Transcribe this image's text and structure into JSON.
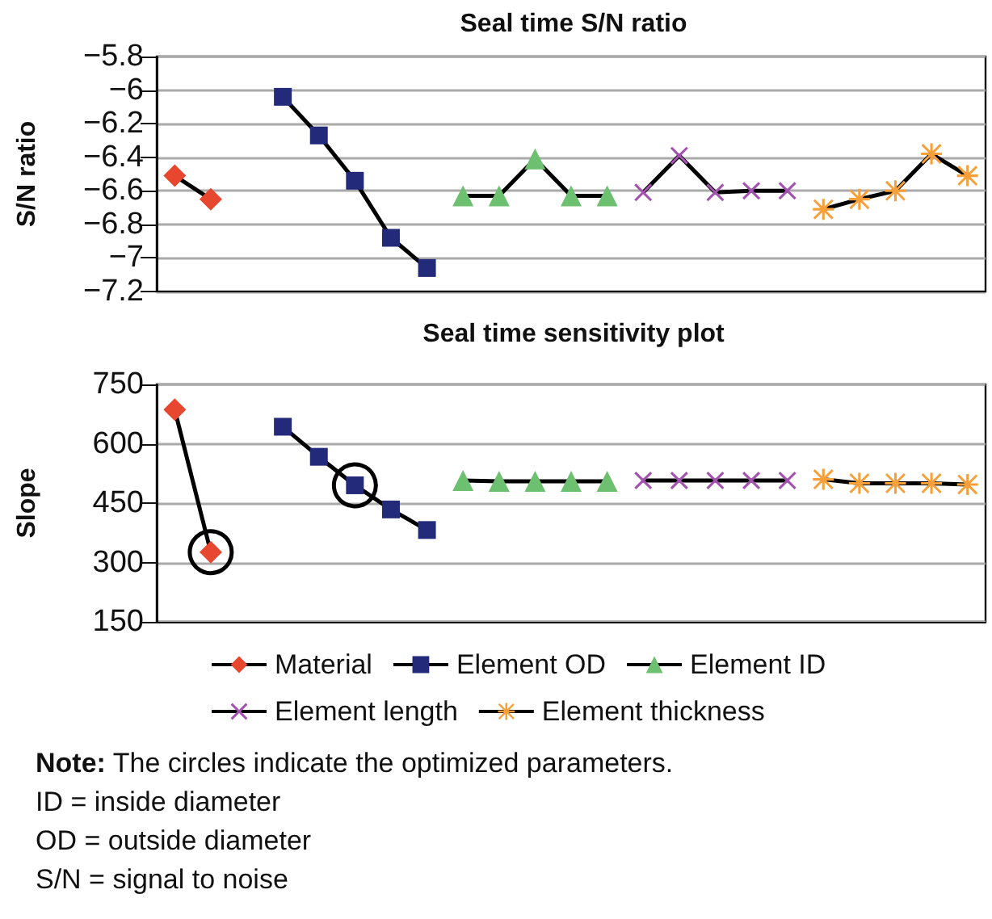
{
  "chart_data": [
    {
      "type": "line",
      "title": "Seal time S/N ratio",
      "ylabel": "S/N ratio",
      "categories": [
        null,
        null,
        null,
        null,
        null,
        null,
        null,
        null,
        null,
        null,
        null,
        null,
        null,
        null,
        null,
        null,
        null,
        null,
        null,
        null,
        null,
        null,
        null
      ],
      "series": [
        {
          "color": "#e8472f",
          "marker": "diamond",
          "values": [
            -6.51,
            -6.65,
            null,
            null,
            null,
            null,
            null,
            null,
            null,
            null,
            null,
            null,
            null,
            null,
            null,
            null,
            null,
            null,
            null,
            null,
            null,
            null,
            null
          ]
        },
        {
          "color": "#232a7a",
          "marker": "square",
          "values": [
            null,
            null,
            null,
            -6.04,
            -6.27,
            -6.54,
            -6.88,
            -7.06,
            null,
            null,
            null,
            null,
            null,
            null,
            null,
            null,
            null,
            null,
            null,
            null,
            null,
            null,
            null
          ]
        },
        {
          "color": "#6cc070",
          "marker": "triangle",
          "values": [
            null,
            null,
            null,
            null,
            null,
            null,
            null,
            null,
            -6.63,
            -6.63,
            -6.41,
            -6.63,
            -6.63,
            null,
            null,
            null,
            null,
            null,
            null,
            null,
            null,
            null,
            null
          ]
        },
        {
          "color": "#a452b0",
          "marker": "cross",
          "values": [
            null,
            null,
            null,
            null,
            null,
            null,
            null,
            null,
            null,
            null,
            null,
            null,
            null,
            -6.61,
            -6.39,
            -6.61,
            -6.6,
            -6.6,
            null,
            null,
            null,
            null,
            null
          ]
        },
        {
          "color": "#f7a03a",
          "marker": "star",
          "values": [
            null,
            null,
            null,
            null,
            null,
            null,
            null,
            null,
            null,
            null,
            null,
            null,
            null,
            null,
            null,
            null,
            null,
            null,
            -6.71,
            -6.65,
            -6.6,
            -6.38,
            -6.51
          ]
        }
      ],
      "ylim": [
        -7.2,
        -5.8
      ],
      "yticks": [
        {
          "value": -7.2,
          "label": "−7.2"
        },
        {
          "value": -7,
          "label": "−7"
        },
        {
          "value": -6.8,
          "label": "−6.8"
        },
        {
          "value": -6.6,
          "label": "−6.6"
        },
        {
          "value": -6.4,
          "label": "−6.4"
        },
        {
          "value": -6.2,
          "label": "−6.2"
        },
        {
          "value": -6,
          "label": "−6"
        },
        {
          "value": -5.8,
          "label": "−5.8"
        }
      ],
      "grid": "y",
      "legend": false,
      "line_style": "solid"
    },
    {
      "type": "line",
      "title": "Seal time sensitivity plot",
      "ylabel": "Slope",
      "categories": [
        null,
        null,
        null,
        null,
        null,
        null,
        null,
        null,
        null,
        null,
        null,
        null,
        null,
        null,
        null,
        null,
        null,
        null,
        null,
        null,
        null,
        null,
        null
      ],
      "series": [
        {
          "name": "Material",
          "color": "#e8472f",
          "marker": "diamond",
          "values": [
            686,
            326,
            null,
            null,
            null,
            null,
            null,
            null,
            null,
            null,
            null,
            null,
            null,
            null,
            null,
            null,
            null,
            null,
            null,
            null,
            null,
            null,
            null
          ]
        },
        {
          "name": "Element OD",
          "color": "#232a7a",
          "marker": "square",
          "values": [
            null,
            null,
            null,
            643,
            567,
            495,
            434,
            382,
            null,
            null,
            null,
            null,
            null,
            null,
            null,
            null,
            null,
            null,
            null,
            null,
            null,
            null,
            null
          ]
        },
        {
          "name": "Element ID",
          "color": "#6cc070",
          "marker": "triangle",
          "values": [
            null,
            null,
            null,
            null,
            null,
            null,
            null,
            null,
            507,
            505,
            505,
            505,
            505,
            null,
            null,
            null,
            null,
            null,
            null,
            null,
            null,
            null,
            null
          ]
        },
        {
          "name": "Element length",
          "color": "#a452b0",
          "marker": "cross",
          "values": [
            null,
            null,
            null,
            null,
            null,
            null,
            null,
            null,
            null,
            null,
            null,
            null,
            null,
            507,
            507,
            507,
            507,
            507,
            null,
            null,
            null,
            null,
            null
          ]
        },
        {
          "name": "Element thickness",
          "color": "#f7a03a",
          "marker": "star",
          "values": [
            null,
            null,
            null,
            null,
            null,
            null,
            null,
            null,
            null,
            null,
            null,
            null,
            null,
            null,
            null,
            null,
            null,
            null,
            510,
            500,
            500,
            500,
            497
          ]
        },
        {
          "type": "scatter",
          "color": "#000000",
          "marker": "circle",
          "values": [
            null,
            326,
            null,
            null,
            null,
            495,
            null,
            null,
            null,
            null,
            null,
            null,
            null,
            null,
            null,
            null,
            null,
            null,
            null,
            null,
            null,
            null,
            null
          ]
        }
      ],
      "ylim": [
        150,
        750
      ],
      "yticks": [
        150,
        300,
        450,
        600,
        750
      ],
      "grid": "y",
      "legend": "bottom",
      "line_style": "solid",
      "annotations": [
        "**Note:** The circles indicate the optimized parameters.",
        "ID = inside diameter",
        "OD =  outside diameter",
        "S/N = signal to noise"
      ]
    }
  ]
}
